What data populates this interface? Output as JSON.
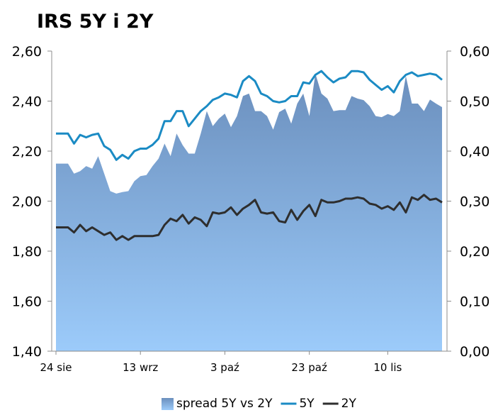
{
  "chart_data": {
    "type": "line",
    "title": "IRS 5Y i 2Y",
    "y_left": {
      "ylim": [
        1.4,
        2.6
      ],
      "ticks": [
        "1,40",
        "1,60",
        "1,80",
        "2,00",
        "2,20",
        "2,40",
        "2,60"
      ],
      "tick_values": [
        1.4,
        1.6,
        1.8,
        2.0,
        2.2,
        2.4,
        2.6
      ]
    },
    "y_right": {
      "ylim": [
        0.0,
        0.6
      ],
      "ticks": [
        "0,00",
        "0,10",
        "0,20",
        "0,30",
        "0,40",
        "0,50",
        "0,60"
      ],
      "tick_values": [
        0.0,
        0.1,
        0.2,
        0.3,
        0.4,
        0.5,
        0.6
      ]
    },
    "x_ticks": [
      {
        "label": "24 sie",
        "index": 0
      },
      {
        "label": "13 wrz",
        "index": 14
      },
      {
        "label": "3 paź",
        "index": 28
      },
      {
        "label": "23 paź",
        "index": 42
      },
      {
        "label": "10 lis",
        "index": 55
      }
    ],
    "grid": false,
    "legend_position": "bottom",
    "series": [
      {
        "name": "spread 5Y vs 2Y",
        "kind": "area",
        "axis": "right",
        "color_top": "#6b8fbd",
        "color_bottom": "#9ccbfa",
        "values": [
          0.375,
          0.375,
          0.375,
          0.355,
          0.36,
          0.37,
          0.365,
          0.39,
          0.355,
          0.32,
          0.315,
          0.318,
          0.32,
          0.34,
          0.35,
          0.352,
          0.37,
          0.385,
          0.415,
          0.39,
          0.435,
          0.412,
          0.395,
          0.395,
          0.435,
          0.48,
          0.45,
          0.465,
          0.475,
          0.448,
          0.47,
          0.51,
          0.515,
          0.48,
          0.48,
          0.47,
          0.443,
          0.478,
          0.485,
          0.455,
          0.495,
          0.515,
          0.47,
          0.555,
          0.515,
          0.505,
          0.48,
          0.482,
          0.482,
          0.51,
          0.505,
          0.502,
          0.49,
          0.47,
          0.468,
          0.474,
          0.47,
          0.48,
          0.55,
          0.495,
          0.495,
          0.48,
          0.503,
          0.495,
          0.488
        ]
      },
      {
        "name": "5Y",
        "kind": "line",
        "axis": "left",
        "color": "#1b8bc4",
        "values": [
          2.27,
          2.27,
          2.27,
          2.23,
          2.265,
          2.255,
          2.265,
          2.27,
          2.22,
          2.205,
          2.165,
          2.185,
          2.17,
          2.2,
          2.21,
          2.21,
          2.225,
          2.25,
          2.32,
          2.32,
          2.36,
          2.36,
          2.3,
          2.33,
          2.36,
          2.38,
          2.405,
          2.415,
          2.43,
          2.425,
          2.415,
          2.48,
          2.5,
          2.48,
          2.43,
          2.42,
          2.4,
          2.395,
          2.4,
          2.42,
          2.42,
          2.475,
          2.47,
          2.505,
          2.52,
          2.495,
          2.475,
          2.49,
          2.495,
          2.52,
          2.52,
          2.515,
          2.485,
          2.465,
          2.445,
          2.46,
          2.435,
          2.48,
          2.505,
          2.515,
          2.5,
          2.505,
          2.51,
          2.505,
          2.485
        ]
      },
      {
        "name": "2Y",
        "kind": "line",
        "axis": "left",
        "color": "#2e2e2e",
        "values": [
          1.895,
          1.895,
          1.895,
          1.875,
          1.905,
          1.88,
          1.895,
          1.88,
          1.865,
          1.875,
          1.845,
          1.86,
          1.845,
          1.86,
          1.86,
          1.86,
          1.86,
          1.865,
          1.905,
          1.93,
          1.92,
          1.945,
          1.91,
          1.935,
          1.925,
          1.9,
          1.955,
          1.95,
          1.955,
          1.975,
          1.945,
          1.97,
          1.985,
          2.005,
          1.955,
          1.95,
          1.955,
          1.92,
          1.915,
          1.965,
          1.925,
          1.96,
          1.985,
          1.94,
          2.005,
          1.995,
          1.995,
          2.0,
          2.01,
          2.01,
          2.015,
          2.01,
          1.99,
          1.985,
          1.97,
          1.98,
          1.965,
          1.995,
          1.955,
          2.015,
          2.005,
          2.025,
          2.005,
          2.01,
          1.995
        ]
      }
    ]
  }
}
